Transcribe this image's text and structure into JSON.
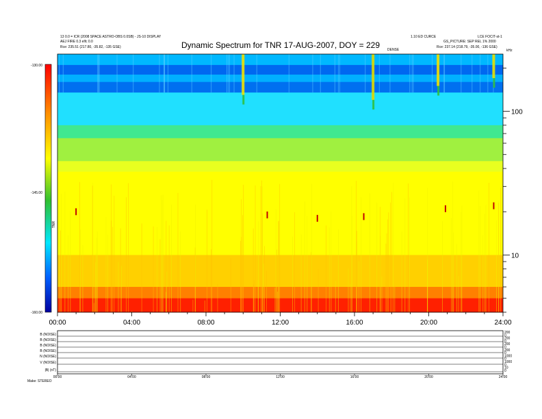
{
  "header": {
    "left_line1": "13 0.0 = ICR (2008 SPACE ASTRO-OBS 0.0SB) - JS-10 DISPLAY",
    "left_line2": "AEJ FIRE 0.3 elfc 0.0",
    "left_line3": "Rce:   235.51 (217.80, -35.82, -135 GSE)",
    "right_line1a": "1.10 ED CURCE",
    "right_line1b": "LCE FOCIT-st-1",
    "right_line2": "GS_PICTURE: SEP REL 1% 2000",
    "right_line3": "Rce:   237.14 (218.79, -35.00, -136 GSE)",
    "dense_label": "DENSE",
    "units_label": "kHz"
  },
  "title": "Dynamic Spectrum for TNR 17-AUG-2007, DOY = 229",
  "colorbar": {
    "labels": [
      "-130.00",
      "-145.00",
      "-160.00"
    ],
    "side_label": "TNR"
  },
  "bottom_panel": {
    "row_labels": [
      "B (NOISE)",
      "B (NOISE)",
      "B (NOISE)",
      "B (NOISE)",
      "N (NOISE)",
      "V (NOISE)",
      "|B| (nT)"
    ],
    "right_labels": [
      "200",
      "0",
      "200",
      "0",
      "200",
      "0",
      "200",
      "0",
      "1000",
      "0",
      "1000",
      "0",
      "10",
      "0"
    ],
    "x_ticks": [
      "00:00",
      "04:00",
      "08:00",
      "12:00",
      "16:00",
      "20:00",
      "24:00"
    ],
    "footer": "Make:   STEREO"
  },
  "chart_data": {
    "type": "heatmap",
    "title": "Dynamic Spectrum for TNR 17-AUG-2007, DOY = 229",
    "xlabel": "",
    "ylabel": "kHz",
    "x_ticks": [
      "00:00",
      "04:00",
      "08:00",
      "12:00",
      "16:00",
      "20:00",
      "24:00"
    ],
    "xlim": [
      0,
      24
    ],
    "y_scale": "log",
    "ylim": [
      4,
      250
    ],
    "y_ticks": [
      10,
      100
    ],
    "colorbar": {
      "min": -160,
      "max": -130,
      "ticks": [
        -130,
        -145,
        -160
      ],
      "colors": [
        "#0000a0",
        "#0060ff",
        "#00e0ff",
        "#20c040",
        "#ffff00",
        "#ff8000",
        "#ff0000"
      ]
    },
    "bands": [
      {
        "from_khz": 210,
        "to_khz": 250,
        "color": "#00b8ff"
      },
      {
        "from_khz": 180,
        "to_khz": 210,
        "color": "#0068f0"
      },
      {
        "from_khz": 160,
        "to_khz": 180,
        "color": "#00b0ff"
      },
      {
        "from_khz": 135,
        "to_khz": 160,
        "color": "#0070f0"
      },
      {
        "from_khz": 80,
        "to_khz": 135,
        "color": "#20e0ff"
      },
      {
        "from_khz": 65,
        "to_khz": 80,
        "color": "#40e890"
      },
      {
        "from_khz": 45,
        "to_khz": 65,
        "color": "#a0f040"
      },
      {
        "from_khz": 38,
        "to_khz": 45,
        "color": "#e8ff20"
      },
      {
        "from_khz": 10,
        "to_khz": 38,
        "color": "#ffff00"
      },
      {
        "from_khz": 6,
        "to_khz": 10,
        "color": "#ffd000"
      },
      {
        "from_khz": 5,
        "to_khz": 6,
        "color": "#ff8000"
      },
      {
        "from_khz": 4,
        "to_khz": 5,
        "color": "#ff2000"
      }
    ],
    "bursts": [
      {
        "time_h": 10.0,
        "from_khz": 130,
        "to_khz": 250,
        "color": "#f0e000"
      },
      {
        "time_h": 17.0,
        "from_khz": 120,
        "to_khz": 250,
        "color": "#e0d800"
      },
      {
        "time_h": 20.5,
        "from_khz": 150,
        "to_khz": 250,
        "color": "#f0e000"
      },
      {
        "time_h": 23.5,
        "from_khz": 170,
        "to_khz": 250,
        "color": "#e8e000"
      }
    ]
  }
}
